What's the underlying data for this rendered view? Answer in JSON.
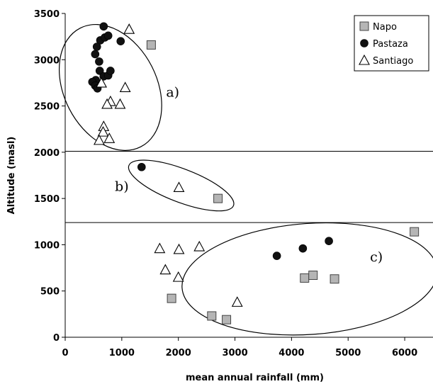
{
  "chart_data": {
    "type": "scatter",
    "xlabel": "mean annual rainfall (mm)",
    "ylabel": "Altitude (masl)",
    "xlim": [
      0,
      6500
    ],
    "ylim": [
      0,
      3500
    ],
    "x_ticks": [
      "0",
      "1000",
      "2000",
      "3000",
      "4000",
      "5000",
      "6000"
    ],
    "y_ticks": [
      "0",
      "500",
      "1000",
      "1500",
      "2000",
      "2500",
      "3000",
      "3500"
    ],
    "x_tick_values": [
      0,
      1000,
      2000,
      3000,
      4000,
      5000,
      6000
    ],
    "y_tick_values": [
      0,
      500,
      1000,
      1500,
      2000,
      2500,
      3000,
      3500
    ],
    "grid": false,
    "legend_position": "top-right",
    "horizontal_lines": [
      2010,
      1240
    ],
    "series": [
      {
        "name": "Napo",
        "marker": "square",
        "color": "#b5b5b5",
        "points": [
          [
            1520,
            3160
          ],
          [
            2700,
            1500
          ],
          [
            1880,
            420
          ],
          [
            2590,
            230
          ],
          [
            2850,
            190
          ],
          [
            4230,
            640
          ],
          [
            4380,
            670
          ],
          [
            4760,
            630
          ],
          [
            6170,
            1140
          ]
        ]
      },
      {
        "name": "Pastaza",
        "marker": "circle",
        "color": "#111111",
        "points": [
          [
            680,
            3360
          ],
          [
            620,
            3210
          ],
          [
            700,
            3240
          ],
          [
            560,
            3140
          ],
          [
            760,
            3260
          ],
          [
            530,
            3060
          ],
          [
            600,
            2980
          ],
          [
            980,
            3200
          ],
          [
            540,
            2780
          ],
          [
            610,
            2880
          ],
          [
            680,
            2820
          ],
          [
            760,
            2830
          ],
          [
            800,
            2880
          ],
          [
            480,
            2760
          ],
          [
            530,
            2720
          ],
          [
            570,
            2690
          ],
          [
            1350,
            1840
          ],
          [
            3740,
            880
          ],
          [
            4200,
            960
          ],
          [
            4660,
            1040
          ]
        ]
      },
      {
        "name": "Santiago",
        "marker": "triangle",
        "color": "#ffffff",
        "points": [
          [
            1130,
            3330
          ],
          [
            640,
            2750
          ],
          [
            1060,
            2700
          ],
          [
            800,
            2550
          ],
          [
            740,
            2520
          ],
          [
            970,
            2520
          ],
          [
            680,
            2280
          ],
          [
            670,
            2220
          ],
          [
            780,
            2150
          ],
          [
            600,
            2130
          ],
          [
            2010,
            1620
          ],
          [
            1670,
            960
          ],
          [
            2010,
            950
          ],
          [
            2370,
            980
          ],
          [
            1770,
            730
          ],
          [
            2000,
            650
          ],
          [
            3040,
            380
          ]
        ]
      }
    ],
    "annotations": [
      {
        "label": "a)",
        "x": 1900,
        "y": 2600
      },
      {
        "label": "b)",
        "x": 1000,
        "y": 1580
      },
      {
        "label": "c)",
        "x": 5500,
        "y": 820
      }
    ],
    "ellipses": [
      {
        "cx": 800,
        "cy": 2700,
        "rx": 820,
        "ry": 720,
        "angle": -27
      },
      {
        "cx": 2050,
        "cy": 1640,
        "rx": 990,
        "ry": 180,
        "angle": 21
      },
      {
        "cx": 4320,
        "cy": 630,
        "rx": 2260,
        "ry": 600,
        "angle": -4
      }
    ]
  }
}
